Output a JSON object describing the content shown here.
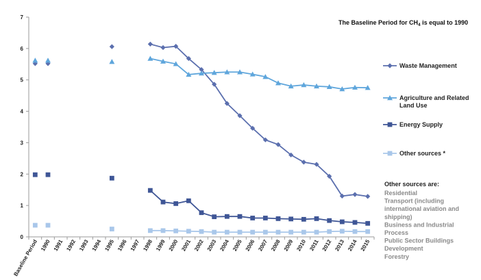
{
  "chart_data": {
    "type": "line",
    "baseline_note": {
      "prefix": "The Baseline Period for CH",
      "subscript": "4",
      "suffix": " is equal to 1990"
    },
    "categories": [
      "Baseline Period",
      "1990",
      "1991",
      "1992",
      "1993",
      "1994",
      "1995",
      "1996",
      "1997",
      "1998",
      "1999",
      "2000",
      "2001",
      "2002",
      "2003",
      "2004",
      "2005",
      "2006",
      "2007",
      "2008",
      "2009",
      "2010",
      "2011",
      "2012",
      "2013",
      "2014",
      "2015"
    ],
    "ylim": [
      0,
      7
    ],
    "yticks": [
      "0",
      "1",
      "2",
      "3",
      "4",
      "5",
      "6",
      "7"
    ],
    "grid": false,
    "legend_position": "right",
    "series": [
      {
        "name": "Waste Management",
        "color": "#5b6fae",
        "marker": "diamond",
        "values": [
          5.52,
          5.52,
          null,
          null,
          null,
          null,
          6.06,
          null,
          null,
          6.14,
          6.03,
          6.07,
          5.68,
          5.33,
          4.86,
          4.25,
          3.86,
          3.46,
          3.09,
          2.94,
          2.61,
          2.38,
          2.31,
          1.93,
          1.3,
          1.35,
          1.29
        ]
      },
      {
        "name": "Agriculture and Related Land Use",
        "color": "#5fa6dc",
        "marker": "triangle",
        "values": [
          5.62,
          5.62,
          null,
          null,
          null,
          null,
          5.58,
          null,
          null,
          5.68,
          5.59,
          5.51,
          5.17,
          5.21,
          5.23,
          5.25,
          5.25,
          5.18,
          5.1,
          4.9,
          4.8,
          4.84,
          4.8,
          4.78,
          4.71,
          4.76,
          4.75
        ]
      },
      {
        "name": "Energy Supply",
        "color": "#3f5696",
        "marker": "square",
        "values": [
          1.98,
          1.98,
          null,
          null,
          null,
          null,
          1.87,
          null,
          null,
          1.48,
          1.11,
          1.06,
          1.15,
          0.77,
          0.64,
          0.65,
          0.65,
          0.6,
          0.6,
          0.58,
          0.57,
          0.56,
          0.58,
          0.52,
          0.48,
          0.46,
          0.43
        ]
      },
      {
        "name": "Other sources *",
        "color": "#a9c7ea",
        "marker": "square",
        "values": [
          0.37,
          0.37,
          null,
          null,
          null,
          null,
          0.25,
          null,
          null,
          0.2,
          0.2,
          0.19,
          0.18,
          0.17,
          0.15,
          0.15,
          0.15,
          0.15,
          0.15,
          0.15,
          0.15,
          0.15,
          0.15,
          0.17,
          0.18,
          0.17,
          0.17
        ]
      }
    ],
    "legend_entries": [
      {
        "lines": [
          "Waste Management"
        ]
      },
      {
        "lines": [
          "Agriculture and Related",
          "Land Use"
        ]
      },
      {
        "lines": [
          "Energy Supply"
        ]
      },
      {
        "lines": [
          "Other sources *"
        ]
      }
    ],
    "note": {
      "title": "Other sources are:",
      "lines": [
        "Residential",
        "Transport (including",
        "international aviation and",
        "shipping)",
        "Business and Industrial",
        "Process",
        "Public Sector Buildings",
        "Development",
        "Forestry"
      ]
    }
  }
}
